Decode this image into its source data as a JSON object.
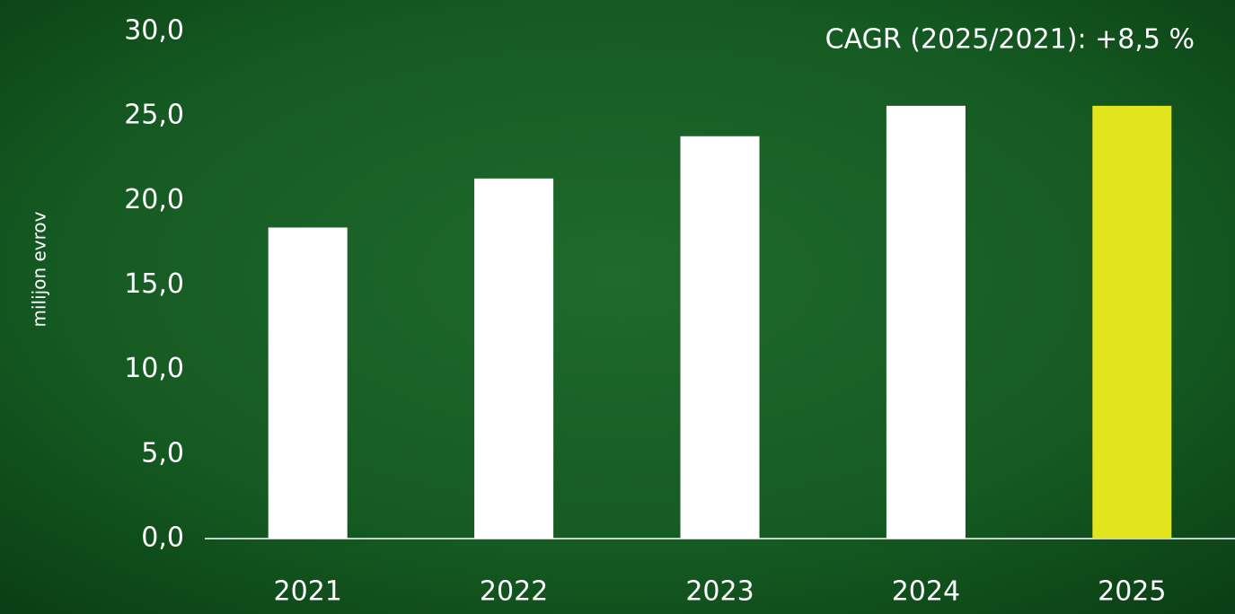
{
  "chart_data": {
    "type": "bar",
    "annotation": "CAGR (2025/2021): +8,5 %",
    "y_label": "milijon evrov",
    "categories": [
      "2021",
      "2022",
      "2023",
      "2024",
      "2025"
    ],
    "values": [
      18.4,
      21.3,
      23.8,
      25.6,
      25.6
    ],
    "colors": [
      "#ffffff",
      "#ffffff",
      "#ffffff",
      "#ffffff",
      "#e2e41e"
    ],
    "ylim": [
      0,
      30
    ],
    "yticks": [
      {
        "value": 0,
        "label": "0,0"
      },
      {
        "value": 5,
        "label": "5,0"
      },
      {
        "value": 10,
        "label": "10,0"
      },
      {
        "value": 15,
        "label": "15,0"
      },
      {
        "value": 20,
        "label": "20,0"
      },
      {
        "value": 25,
        "label": "25,0"
      },
      {
        "value": 30,
        "label": "30,0"
      }
    ],
    "grid": false
  }
}
